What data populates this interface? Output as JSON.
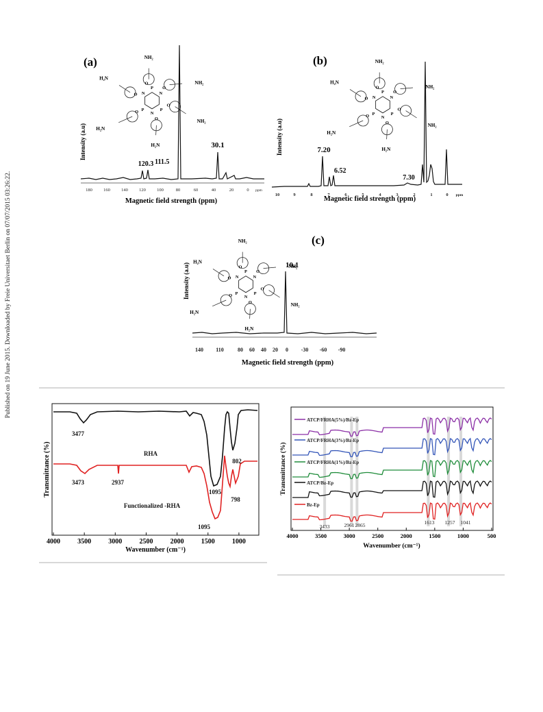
{
  "sidebar_note": "Published on 19 June 2015. Downloaded by Freie Universitaet Berlin on 07/07/2015 03:26:22.",
  "panel_a": {
    "label": "(a)",
    "ylabel": "Intensity (a.u)",
    "xlabel": "Magnetic field strength (ppm)",
    "peak_labels": [
      "120.3",
      "111.5",
      "30.1"
    ],
    "ticks": [
      "180",
      "160",
      "140",
      "120",
      "100",
      "80",
      "60",
      "40",
      "20",
      "0"
    ],
    "unit_tick": "ppm"
  },
  "panel_b": {
    "label": "(b)",
    "ylabel": "Intensity (a.u)",
    "xlabel": "Magnetic field strength (ppm)",
    "peak_labels": [
      "7.20",
      "6.52",
      "7.30"
    ],
    "ticks": [
      "10",
      "9",
      "8",
      "7",
      "6",
      "5",
      "4",
      "3",
      "2",
      "1",
      "0"
    ],
    "unit_tick": "ppm"
  },
  "panel_c": {
    "label": "(c)",
    "ylabel": "Intensity (a.u)",
    "xlabel": "Magnetic field strength (ppm)",
    "peak_labels": [
      "10.1"
    ],
    "ticks": [
      "140",
      "110",
      "80",
      "60",
      "40",
      "20",
      "0",
      "-30",
      "-60",
      "-90"
    ]
  },
  "molecule": {
    "nh2": "NH₂",
    "h2n": "H₂N",
    "o": "O",
    "n": "N",
    "p": "P"
  },
  "chart_data": [
    {
      "type": "line",
      "title": "",
      "xlabel": "Wavenumber (cm⁻¹)",
      "ylabel": "Transmittance (%)",
      "xlim": [
        4000,
        700
      ],
      "ticks": [
        "4000",
        "3500",
        "3000",
        "2500",
        "2000",
        "1500",
        "1000"
      ],
      "series": [
        {
          "name": "RHA",
          "color": "#111111",
          "peaks": [
            3477,
            1095,
            802
          ]
        },
        {
          "name": "Functionalized -RHA",
          "color": "#e02020",
          "peaks": [
            3473,
            2937,
            1095,
            798
          ]
        }
      ],
      "annotations": [
        "3477",
        "802",
        "RHA",
        "1095",
        "3473",
        "2937",
        "798",
        "Functionalized -RHA",
        "1095"
      ]
    },
    {
      "type": "line",
      "title": "",
      "xlabel": "Wavenumber (cm⁻¹)",
      "ylabel": "Transmittance (%)",
      "xlim": [
        4000,
        500
      ],
      "ticks": [
        "4000",
        "3500",
        "3000",
        "2500",
        "2000",
        "1500",
        "1000",
        "500"
      ],
      "series": [
        {
          "name": "ATCP/FRHA(5%)/Bz-Ep",
          "color": "#8b2fa6"
        },
        {
          "name": "ATCP/FRHA(3%)/Bz-Ep",
          "color": "#3355b8"
        },
        {
          "name": "ATCP/FRHA(1%)/Bz-Ep",
          "color": "#1f8c3a"
        },
        {
          "name": "ATCP/Bz-Ep",
          "color": "#111111"
        },
        {
          "name": "Bz-Ep",
          "color": "#e02020"
        }
      ],
      "marked_peaks": [
        3433,
        2961,
        2865,
        1613,
        1257,
        1041
      ],
      "annotations": [
        "3433",
        "2961",
        "2865",
        "1613",
        "1257",
        "1041"
      ]
    }
  ]
}
